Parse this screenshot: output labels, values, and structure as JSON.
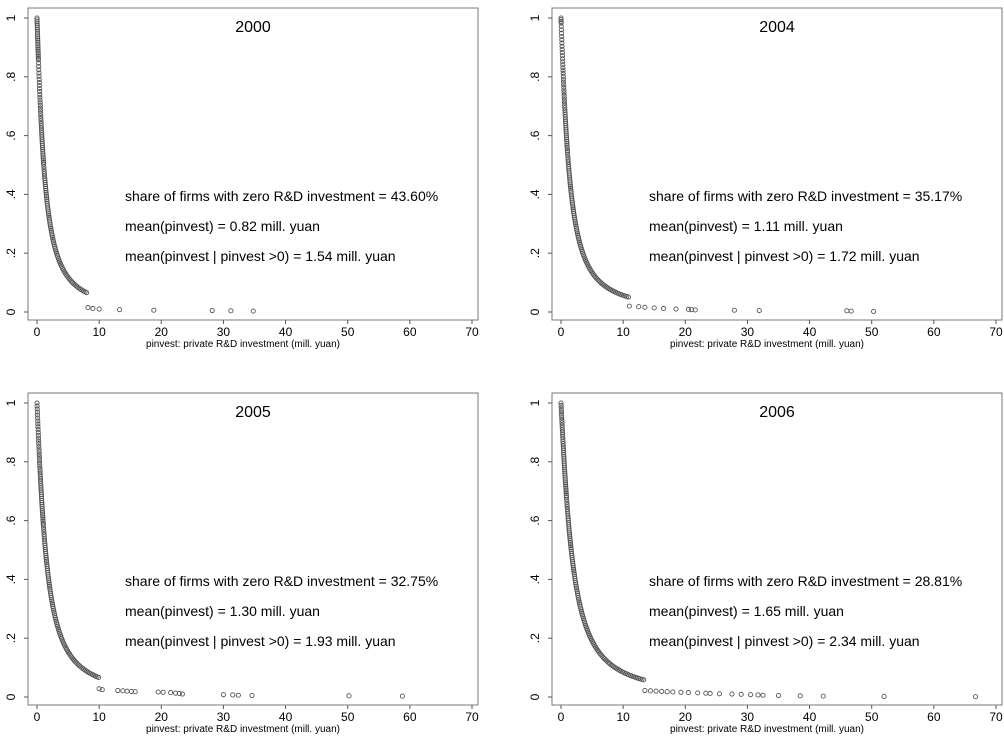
{
  "chart_data": [
    {
      "type": "scatter",
      "title": "2000",
      "xlabel": "pinvest: private R&D investment (mill. yuan)",
      "ylabel": "",
      "xlim": [
        0,
        70
      ],
      "ylim": [
        0,
        1
      ],
      "xticks": [
        "0",
        "10",
        "20",
        "30",
        "40",
        "50",
        "60",
        "70"
      ],
      "yticks": [
        "0",
        ".2",
        ".4",
        ".6",
        ".8",
        "1"
      ],
      "annotations": [
        "share of firms with zero R&D investment = 43.60%",
        "mean(pinvest) = 0.82 mill. yuan",
        "mean(pinvest | pinvest >0) = 1.54 mill. yuan"
      ],
      "share_zero_pct": 43.6,
      "mean_pinvest": 0.82,
      "mean_pinvest_positive": 1.54,
      "outliers": [
        [
          8.2,
          0.015
        ],
        [
          9.0,
          0.012
        ],
        [
          10.0,
          0.01
        ],
        [
          13.3,
          0.008
        ],
        [
          18.8,
          0.006
        ],
        [
          28.2,
          0.005
        ],
        [
          31.2,
          0.004
        ],
        [
          34.8,
          0.003
        ]
      ]
    },
    {
      "type": "scatter",
      "title": "2004",
      "xlabel": "pinvest: private R&D investment (mill. yuan)",
      "ylabel": "",
      "xlim": [
        0,
        70
      ],
      "ylim": [
        0,
        1
      ],
      "xticks": [
        "0",
        "10",
        "20",
        "30",
        "40",
        "50",
        "60",
        "70"
      ],
      "yticks": [
        "0",
        ".2",
        ".4",
        ".6",
        ".8",
        "1"
      ],
      "annotations": [
        "share of firms with zero R&D investment = 35.17%",
        "mean(pinvest) = 1.11 mill. yuan",
        "mean(pinvest | pinvest >0) = 1.72 mill. yuan"
      ],
      "share_zero_pct": 35.17,
      "mean_pinvest": 1.11,
      "mean_pinvest_positive": 1.72,
      "outliers": [
        [
          11.0,
          0.02
        ],
        [
          12.5,
          0.018
        ],
        [
          13.5,
          0.016
        ],
        [
          15.0,
          0.014
        ],
        [
          16.5,
          0.012
        ],
        [
          18.5,
          0.01
        ],
        [
          20.5,
          0.009
        ],
        [
          21.0,
          0.008
        ],
        [
          21.6,
          0.007
        ],
        [
          27.9,
          0.006
        ],
        [
          31.9,
          0.005
        ],
        [
          46.0,
          0.004
        ],
        [
          46.7,
          0.003
        ],
        [
          50.3,
          0.002
        ]
      ]
    },
    {
      "type": "scatter",
      "title": "2005",
      "xlabel": "pinvest: private R&D investment (mill. yuan)",
      "ylabel": "",
      "xlim": [
        0,
        70
      ],
      "ylim": [
        0,
        1
      ],
      "xticks": [
        "0",
        "10",
        "20",
        "30",
        "40",
        "50",
        "60",
        "70"
      ],
      "yticks": [
        "0",
        ".2",
        ".4",
        ".6",
        ".8",
        "1"
      ],
      "annotations": [
        "share of firms with zero R&D investment = 32.75%",
        "mean(pinvest) = 1.30 mill. yuan",
        "mean(pinvest | pinvest >0) = 1.93 mill. yuan"
      ],
      "share_zero_pct": 32.75,
      "mean_pinvest": 1.3,
      "mean_pinvest_positive": 1.93,
      "outliers": [
        [
          10.0,
          0.028
        ],
        [
          10.5,
          0.025
        ],
        [
          13.0,
          0.022
        ],
        [
          13.8,
          0.021
        ],
        [
          14.5,
          0.02
        ],
        [
          15.2,
          0.019
        ],
        [
          15.8,
          0.018
        ],
        [
          19.5,
          0.017
        ],
        [
          20.3,
          0.016
        ],
        [
          21.5,
          0.015
        ],
        [
          22.3,
          0.013
        ],
        [
          22.9,
          0.012
        ],
        [
          23.4,
          0.01
        ],
        [
          30.0,
          0.008
        ],
        [
          31.5,
          0.007
        ],
        [
          32.4,
          0.006
        ],
        [
          34.6,
          0.005
        ],
        [
          50.2,
          0.004
        ],
        [
          58.8,
          0.003
        ]
      ]
    },
    {
      "type": "scatter",
      "title": "2006",
      "xlabel": "pinvest: private R&D investment (mill. yuan)",
      "ylabel": "",
      "xlim": [
        0,
        70
      ],
      "ylim": [
        0,
        1
      ],
      "xticks": [
        "0",
        "10",
        "20",
        "30",
        "40",
        "50",
        "60",
        "70"
      ],
      "yticks": [
        "0",
        ".2",
        ".4",
        ".6",
        ".8",
        "1"
      ],
      "annotations": [
        "share of firms with zero R&D investment = 28.81%",
        "mean(pinvest) = 1.65 mill. yuan",
        "mean(pinvest | pinvest >0) = 2.34 mill. yuan"
      ],
      "share_zero_pct": 28.81,
      "mean_pinvest": 1.65,
      "mean_pinvest_positive": 2.34,
      "outliers": [
        [
          13.5,
          0.022
        ],
        [
          14.4,
          0.021
        ],
        [
          15.3,
          0.02
        ],
        [
          16.2,
          0.019
        ],
        [
          17.1,
          0.018
        ],
        [
          18.0,
          0.017
        ],
        [
          19.3,
          0.016
        ],
        [
          20.5,
          0.015
        ],
        [
          22.0,
          0.014
        ],
        [
          23.3,
          0.013
        ],
        [
          24.0,
          0.012
        ],
        [
          25.5,
          0.011
        ],
        [
          27.5,
          0.01
        ],
        [
          29.0,
          0.009
        ],
        [
          30.5,
          0.008
        ],
        [
          31.7,
          0.007
        ],
        [
          32.5,
          0.006
        ],
        [
          35.0,
          0.005
        ],
        [
          38.5,
          0.004
        ],
        [
          42.2,
          0.003
        ],
        [
          52.0,
          0.002
        ],
        [
          66.7,
          0.001
        ]
      ]
    }
  ]
}
